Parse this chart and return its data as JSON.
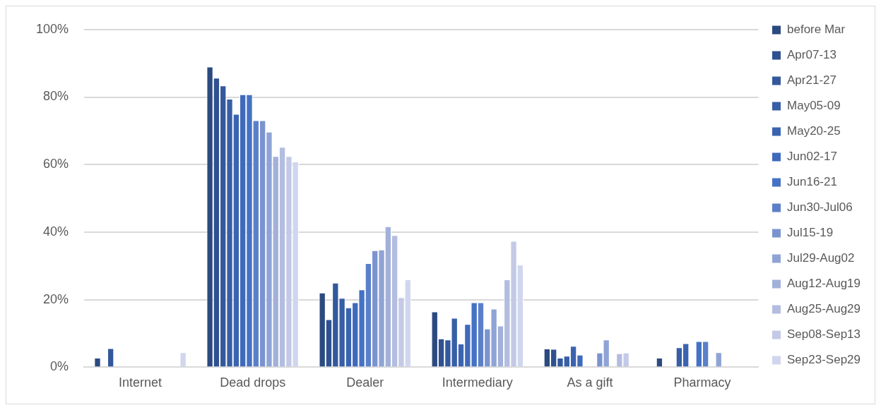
{
  "chart_data": {
    "type": "bar",
    "categories": [
      "Internet",
      "Dead drops",
      "Dealer",
      "Intermediary",
      "As a gift",
      "Pharmacy"
    ],
    "ylim": [
      0,
      100
    ],
    "yticks": [
      {
        "value": 0,
        "label": "0%"
      },
      {
        "value": 20,
        "label": "20%"
      },
      {
        "value": 40,
        "label": "40%"
      },
      {
        "value": 60,
        "label": "60%"
      },
      {
        "value": 80,
        "label": "80%"
      },
      {
        "value": 100,
        "label": "100%"
      }
    ],
    "grid": "y",
    "legend": "right",
    "series": [
      {
        "name": "before Mar",
        "color": "#2b4a80",
        "values": [
          2.8,
          89.0,
          22.1,
          16.5,
          5.5,
          2.8
        ]
      },
      {
        "name": "Apr07-13",
        "color": "#2f5190",
        "values": [
          null,
          85.7,
          14.2,
          8.5,
          5.4,
          null
        ]
      },
      {
        "name": "Apr21-27",
        "color": "#33589c",
        "values": [
          5.6,
          83.4,
          25.0,
          8.2,
          2.8,
          null
        ]
      },
      {
        "name": "May05-09",
        "color": "#375ea6",
        "values": [
          null,
          79.5,
          20.5,
          14.6,
          3.4,
          5.9
        ]
      },
      {
        "name": "May20-25",
        "color": "#3b64b0",
        "values": [
          null,
          75.0,
          17.7,
          7.0,
          6.3,
          7.1
        ]
      },
      {
        "name": "Jun02-17",
        "color": "#3f6abc",
        "values": [
          null,
          80.8,
          19.2,
          12.8,
          3.7,
          null
        ]
      },
      {
        "name": "Jun16-21",
        "color": "#4472c4",
        "values": [
          null,
          80.8,
          23.0,
          19.2,
          null,
          7.7
        ]
      },
      {
        "name": "Jun30-Jul06",
        "color": "#5b80c9",
        "values": [
          null,
          73.1,
          30.8,
          19.2,
          null,
          7.7
        ]
      },
      {
        "name": "Jul15-19",
        "color": "#7b94d0",
        "values": [
          null,
          73.1,
          34.6,
          11.4,
          4.3,
          null
        ]
      },
      {
        "name": "Jul29-Aug02",
        "color": "#8fa4d5",
        "values": [
          null,
          69.7,
          34.8,
          17.3,
          8.2,
          4.4
        ]
      },
      {
        "name": "Aug12-Aug19",
        "color": "#a2b0da",
        "values": [
          null,
          62.5,
          41.7,
          12.3,
          null,
          null
        ]
      },
      {
        "name": "Aug25-Aug29",
        "color": "#b3bde0",
        "values": [
          null,
          65.2,
          39.1,
          26.0,
          4.1,
          null
        ]
      },
      {
        "name": "Sep08-Sep13",
        "color": "#c3c9e6",
        "values": [
          null,
          62.5,
          20.7,
          37.4,
          4.3,
          null
        ]
      },
      {
        "name": "Sep23-Sep29",
        "color": "#d0d6ee",
        "values": [
          4.4,
          60.9,
          26.0,
          30.4,
          null,
          null
        ]
      }
    ]
  }
}
